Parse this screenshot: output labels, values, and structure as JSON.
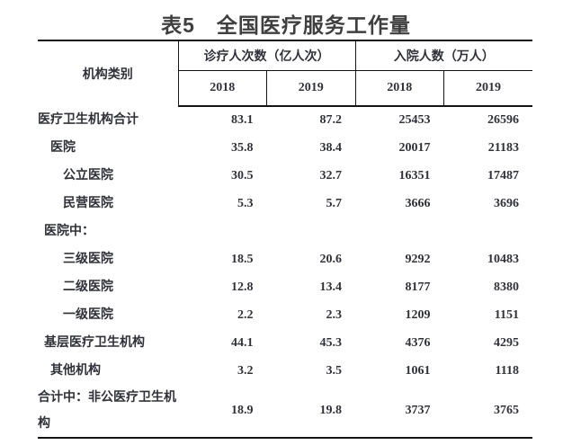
{
  "title": "表5　全国医疗服务工作量",
  "colors": {
    "title_text": "#3f3f3f",
    "table_text": "#31313b",
    "border": "#141414"
  },
  "table": {
    "col_header": "机构类别",
    "groups": [
      {
        "label": "诊疗人次数（亿人次）",
        "years": [
          "2018",
          "2019"
        ]
      },
      {
        "label": "入院人数（万人）",
        "years": [
          "2018",
          "2019"
        ]
      }
    ],
    "rows": [
      {
        "label": "医疗卫生机构合计",
        "level": 0,
        "values": [
          "83.1",
          "87.2",
          "25453",
          "26596"
        ]
      },
      {
        "label": "医院",
        "level": 2,
        "values": [
          "35.8",
          "38.4",
          "20017",
          "21183"
        ]
      },
      {
        "label": "公立医院",
        "level": 3,
        "values": [
          "30.5",
          "32.7",
          "16351",
          "17487"
        ]
      },
      {
        "label": "民营医院",
        "level": 3,
        "values": [
          "5.3",
          "5.7",
          "3666",
          "3696"
        ]
      },
      {
        "label": "医院中：",
        "level": 1,
        "values": [
          "",
          "",
          "",
          ""
        ]
      },
      {
        "label": "三级医院",
        "level": 3,
        "values": [
          "18.5",
          "20.6",
          "9292",
          "10483"
        ]
      },
      {
        "label": "二级医院",
        "level": 3,
        "values": [
          "12.8",
          "13.4",
          "8177",
          "8380"
        ]
      },
      {
        "label": "一级医院",
        "level": 3,
        "values": [
          "2.2",
          "2.3",
          "1209",
          "1151"
        ]
      },
      {
        "label": "基层医疗卫生机构",
        "level": 1,
        "values": [
          "44.1",
          "45.3",
          "4376",
          "4295"
        ]
      },
      {
        "label": "其他机构",
        "level": 2,
        "values": [
          "3.2",
          "3.5",
          "1061",
          "1118"
        ]
      },
      {
        "label": "合计中：非公医疗卫生机构",
        "level": 0,
        "values": [
          "18.9",
          "19.8",
          "3737",
          "3765"
        ]
      }
    ]
  }
}
